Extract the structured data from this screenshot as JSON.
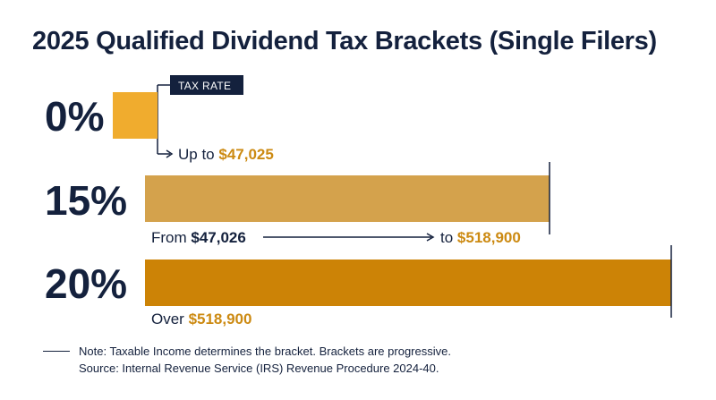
{
  "title": "2025 Qualified Dividend Tax Brackets (Single Filers)",
  "tag_label": "TAX RATE",
  "note": "Note: Taxable Income determines the bracket. Brackets are progressive.",
  "source": "Source: Internal Revenue Service (IRS) Revenue Procedure 2024-40.",
  "colors": {
    "navy": "#14213d",
    "gold_light": "#f0ac2e",
    "gold_tan": "#d4a24c",
    "gold_dark": "#cc8306",
    "accent_text": "#cc8a12"
  },
  "chart_data": {
    "type": "bar",
    "orientation": "horizontal",
    "title": "2025 Qualified Dividend Tax Brackets (Single Filers)",
    "categories": [
      "0%",
      "15%",
      "20%"
    ],
    "values": [
      0,
      15,
      20
    ],
    "brackets": [
      {
        "rate": "0%",
        "range_parts": [
          {
            "text": "Up to ",
            "style": "plain"
          },
          {
            "text": "$47,025",
            "style": "gold"
          }
        ]
      },
      {
        "rate": "15%",
        "range_parts": [
          {
            "text": "From ",
            "style": "plain"
          },
          {
            "text": "$47,026",
            "style": "navy"
          },
          {
            "text": "to ",
            "style": "plain"
          },
          {
            "text": "$518,900",
            "style": "gold"
          }
        ]
      },
      {
        "rate": "20%",
        "range_parts": [
          {
            "text": "Over ",
            "style": "plain"
          },
          {
            "text": "$518,900",
            "style": "gold"
          }
        ]
      }
    ]
  }
}
